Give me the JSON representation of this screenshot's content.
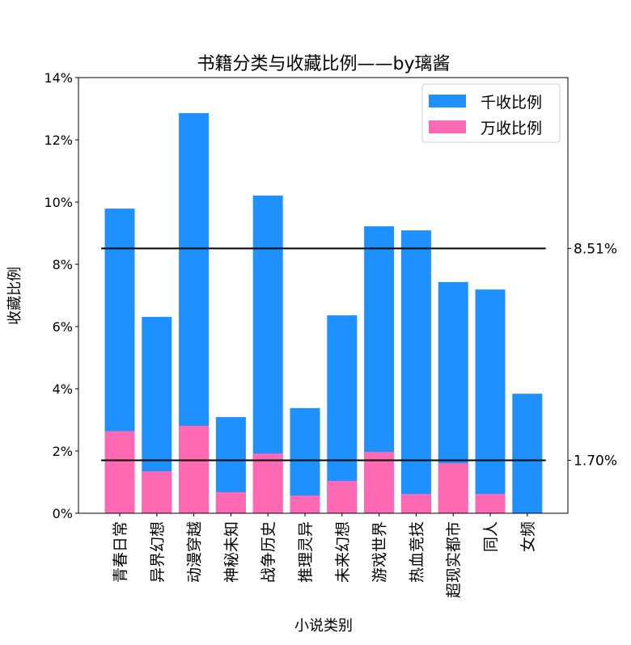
{
  "chart_data": {
    "type": "bar",
    "stacked": "overlay",
    "title": "书籍分类与收藏比例——by璃酱",
    "xlabel": "小说类别",
    "ylabel": "收藏比例",
    "categories": [
      "青春日常",
      "异界幻想",
      "动漫穿越",
      "神秘未知",
      "战争历史",
      "推理灵异",
      "未来幻想",
      "游戏世界",
      "热血竞技",
      "超现实都市",
      "同人",
      "女频"
    ],
    "series": [
      {
        "name": "千收比例",
        "color": "#1E90FF",
        "values": [
          9.79,
          6.31,
          12.86,
          3.09,
          10.21,
          3.38,
          6.36,
          9.22,
          9.09,
          7.43,
          7.19,
          3.84
        ]
      },
      {
        "name": "万收比例",
        "color": "#FF69B4",
        "values": [
          2.64,
          1.35,
          2.81,
          0.68,
          1.92,
          0.57,
          1.04,
          1.97,
          0.62,
          1.61,
          0.62,
          0.0
        ]
      }
    ],
    "hlines": [
      {
        "value": 8.51,
        "label": "8.51%"
      },
      {
        "value": 1.7,
        "label": "1.70%"
      }
    ],
    "yticks": [
      "0%",
      "2%",
      "4%",
      "6%",
      "8%",
      "10%",
      "12%",
      "14%"
    ],
    "ylim": [
      0,
      14
    ],
    "legend": "top-right",
    "grid": false
  }
}
